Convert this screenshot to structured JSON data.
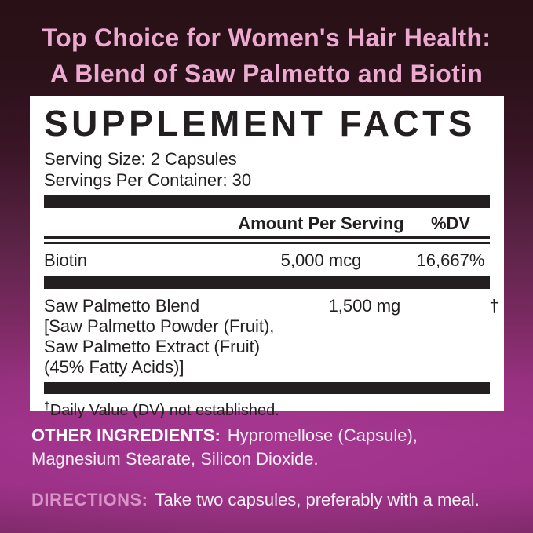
{
  "header": {
    "line1": "Top Choice for Women's Hair Health:",
    "line2": "A Blend of Saw Palmetto and Biotin"
  },
  "panel": {
    "title": "SUPPLEMENT FACTS",
    "serving_size": "Serving Size: 2 Capsules",
    "servings_per_container": "Servings Per Container: 30",
    "columns": {
      "amount": "Amount Per Serving",
      "dv": "%DV"
    },
    "rows": [
      {
        "name": "Biotin",
        "amount": "5,000 mcg",
        "dv": "16,667%"
      },
      {
        "name": "Saw Palmetto Blend",
        "name_lines": [
          "[Saw Palmetto Powder (Fruit),",
          "Saw Palmetto Extract (Fruit)",
          "(45% Fatty Acids)]"
        ],
        "amount": "1,500 mg",
        "dv": "†"
      }
    ],
    "footnote_symbol": "†",
    "footnote": "Daily Value (DV) not established."
  },
  "other_ingredients": {
    "label": "OTHER INGREDIENTS:",
    "line1": "Hypromellose (Capsule),",
    "line2": "Magnesium Stearate, Silicon Dioxide.",
    "full_text": "Hypromellose (Capsule), Magnesium Stearate, Silicon Dioxide."
  },
  "directions": {
    "label": "DIRECTIONS:",
    "text": "Take two capsules, preferably with a meal."
  },
  "colors": {
    "bg-top": "#291016",
    "bg-mid": "#5a2345",
    "bg-bottom": "#9d3289",
    "bg-corner": "#7e2969",
    "panel-bg": "#ffffff",
    "ink": "#231f20",
    "header-pink": "#ecaad1",
    "directions-pink": "#d893c8",
    "text-white": "#f7eff5"
  }
}
